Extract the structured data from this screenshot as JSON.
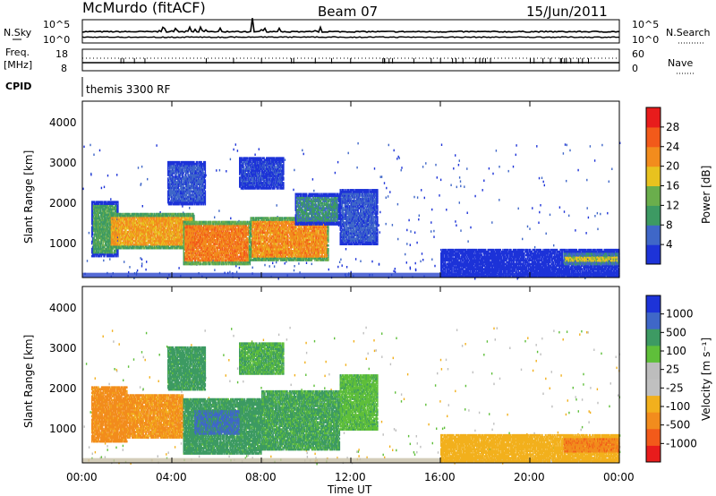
{
  "header": {
    "station": "McMurdo (fitACF)",
    "beam": "Beam 07",
    "date": "15/Jun/2011"
  },
  "noise_panel": {
    "left_label": "N.Sky",
    "left_ticks": [
      "10^5",
      "10^0"
    ],
    "right_label": "N.Search",
    "right_ticks": [
      "10^5",
      "10^0"
    ]
  },
  "freq_panel": {
    "left_label": "Freq.",
    "left_unit": "[MHz]",
    "left_ticks": [
      "18",
      "8"
    ],
    "right_label": "Nave",
    "right_ticks": [
      "60",
      "0"
    ]
  },
  "cpid": {
    "label": "CPID",
    "value": "themis 3300 RF"
  },
  "x_axis": {
    "label": "Time UT",
    "ticks": [
      "00:00",
      "04:00",
      "08:00",
      "12:00",
      "16:00",
      "20:00",
      "00:00"
    ]
  },
  "colors": {
    "power_scale": [
      "#1d33d8",
      "#3f67c8",
      "#3d9a63",
      "#6aae4c",
      "#e8c21f",
      "#f28c1d",
      "#f25a1a",
      "#e81c1c"
    ],
    "velocity_scale": [
      "#e81c1c",
      "#f25a1a",
      "#f28c1d",
      "#f2b01d",
      "#c0c0c0",
      "#bdbdbd",
      "#5fbf3a",
      "#3d9a63",
      "#3f67c8",
      "#1d33d8"
    ]
  },
  "chart_data": [
    {
      "type": "heatmap",
      "title": "Power",
      "xlabel": "",
      "ylabel": "Slant Range [km]",
      "xlim_hours_ut": [
        0,
        24
      ],
      "ylim_km": [
        180,
        4600
      ],
      "y_ticks": [
        "4000",
        "3000",
        "2000",
        "1000"
      ],
      "colorbar": {
        "label": "Power [dB]",
        "ticks": [
          "28",
          "24",
          "20",
          "16",
          "12",
          "8",
          "4"
        ]
      },
      "regions": [
        {
          "t_start": 0.4,
          "t_end": 1.6,
          "r_min": 700,
          "r_max": 2100,
          "value_db": 16
        },
        {
          "t_start": 1.2,
          "t_end": 5.0,
          "r_min": 900,
          "r_max": 1800,
          "value_db": 26
        },
        {
          "t_start": 4.5,
          "t_end": 7.5,
          "r_min": 500,
          "r_max": 1600,
          "value_db": 28
        },
        {
          "t_start": 7.5,
          "t_end": 11.0,
          "r_min": 600,
          "r_max": 1700,
          "value_db": 27
        },
        {
          "t_start": 9.5,
          "t_end": 11.5,
          "r_min": 1500,
          "r_max": 2300,
          "value_db": 14
        },
        {
          "t_start": 11.5,
          "t_end": 13.2,
          "r_min": 1000,
          "r_max": 2400,
          "value_db": 10
        },
        {
          "t_start": 3.8,
          "t_end": 5.5,
          "r_min": 2000,
          "r_max": 3100,
          "value_db": 10
        },
        {
          "t_start": 7.0,
          "t_end": 9.0,
          "r_min": 2400,
          "r_max": 3200,
          "value_db": 8
        },
        {
          "t_start": 16.0,
          "t_end": 24.0,
          "r_min": 200,
          "r_max": 900,
          "value_db": 6
        },
        {
          "t_start": 21.5,
          "t_end": 24.0,
          "r_min": 500,
          "r_max": 800,
          "value_db": 22
        }
      ]
    },
    {
      "type": "heatmap",
      "title": "Velocity",
      "xlabel": "Time UT",
      "ylabel": "Slant Range [km]",
      "xlim_hours_ut": [
        0,
        24
      ],
      "ylim_km": [
        180,
        4600
      ],
      "y_ticks": [
        "4000",
        "3000",
        "2000",
        "1000"
      ],
      "colorbar": {
        "label": "Velocity [m s⁻¹]",
        "ticks": [
          "1000",
          "500",
          "100",
          "25",
          "-25",
          "-100",
          "-500",
          "-1000"
        ]
      },
      "regions": [
        {
          "t_start": 0.4,
          "t_end": 2.0,
          "r_min": 700,
          "r_max": 2100,
          "value_ms": -150
        },
        {
          "t_start": 2.0,
          "t_end": 4.5,
          "r_min": 800,
          "r_max": 1900,
          "value_ms": -120
        },
        {
          "t_start": 4.5,
          "t_end": 8.0,
          "r_min": 400,
          "r_max": 1800,
          "value_ms": 150
        },
        {
          "t_start": 5.0,
          "t_end": 7.0,
          "r_min": 900,
          "r_max": 1500,
          "value_ms": 600
        },
        {
          "t_start": 8.0,
          "t_end": 11.5,
          "r_min": 500,
          "r_max": 2000,
          "value_ms": 120
        },
        {
          "t_start": 11.5,
          "t_end": 13.2,
          "r_min": 1000,
          "r_max": 2400,
          "value_ms": 80
        },
        {
          "t_start": 3.8,
          "t_end": 5.5,
          "r_min": 2000,
          "r_max": 3100,
          "value_ms": 150
        },
        {
          "t_start": 7.0,
          "t_end": 9.0,
          "r_min": 2400,
          "r_max": 3200,
          "value_ms": 100
        },
        {
          "t_start": 16.0,
          "t_end": 24.0,
          "r_min": 200,
          "r_max": 900,
          "value_ms": -60
        },
        {
          "t_start": 21.5,
          "t_end": 24.0,
          "r_min": 450,
          "r_max": 800,
          "value_ms": -400
        }
      ]
    }
  ]
}
